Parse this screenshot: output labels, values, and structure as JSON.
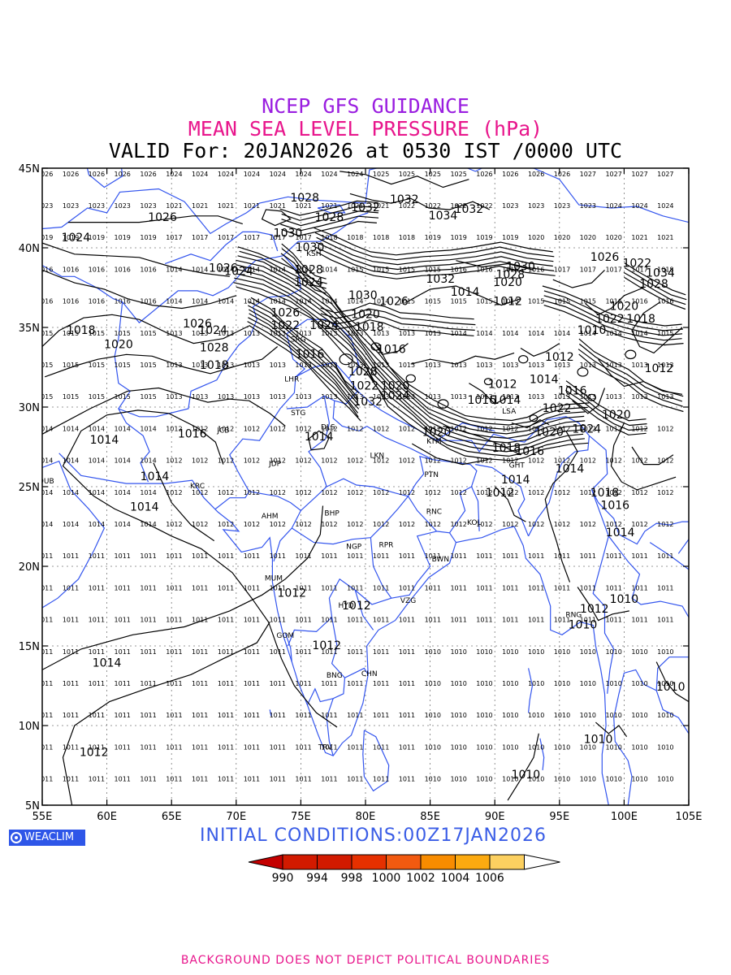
{
  "titles": {
    "line1": "NCEP GFS GUIDANCE",
    "line2": "MEAN SEA LEVEL PRESSURE (hPa)",
    "line3": "VALID For: 20JAN2026 at 0530 IST /0000 UTC"
  },
  "map": {
    "lon_range": [
      55,
      105
    ],
    "lat_range": [
      5,
      45
    ],
    "lon_ticks": [
      "55E",
      "60E",
      "65E",
      "70E",
      "75E",
      "80E",
      "85E",
      "90E",
      "95E",
      "100E",
      "105E"
    ],
    "lat_ticks": [
      "5N",
      "10N",
      "15N",
      "20N",
      "25N",
      "30N",
      "35N",
      "40N",
      "45N"
    ],
    "grid": "dotted",
    "coast_color": "#3355ee",
    "contour_color": "#000000",
    "stations": [
      {
        "id": "KSH",
        "lon": 76.0,
        "lat": 39.5
      },
      {
        "id": "SRG",
        "lon": 74.8,
        "lat": 34.1
      },
      {
        "id": "LHR",
        "lon": 74.3,
        "lat": 31.6
      },
      {
        "id": "STG",
        "lon": 74.8,
        "lat": 29.5
      },
      {
        "id": "DLS",
        "lon": 77.1,
        "lat": 28.6
      },
      {
        "id": "JCB",
        "lon": 69.0,
        "lat": 28.4
      },
      {
        "id": "JDP",
        "lon": 73.0,
        "lat": 26.3
      },
      {
        "id": "LKN",
        "lon": 80.9,
        "lat": 26.8
      },
      {
        "id": "PTN",
        "lon": 85.1,
        "lat": 25.6
      },
      {
        "id": "KTM",
        "lon": 85.3,
        "lat": 27.7
      },
      {
        "id": "GHT",
        "lon": 91.7,
        "lat": 26.2
      },
      {
        "id": "LSA",
        "lon": 91.1,
        "lat": 29.6
      },
      {
        "id": "KRC",
        "lon": 67.0,
        "lat": 24.9
      },
      {
        "id": "DUB",
        "lon": 55.3,
        "lat": 25.2
      },
      {
        "id": "AHM",
        "lon": 72.6,
        "lat": 23.0
      },
      {
        "id": "BHP",
        "lon": 77.4,
        "lat": 23.2
      },
      {
        "id": "RNC",
        "lon": 85.3,
        "lat": 23.3
      },
      {
        "id": "KOL",
        "lon": 88.4,
        "lat": 22.6
      },
      {
        "id": "NGP",
        "lon": 79.1,
        "lat": 21.1
      },
      {
        "id": "RPR",
        "lon": 81.6,
        "lat": 21.2
      },
      {
        "id": "BWN",
        "lon": 85.8,
        "lat": 20.3
      },
      {
        "id": "MUM",
        "lon": 72.9,
        "lat": 19.1
      },
      {
        "id": "HYD",
        "lon": 78.5,
        "lat": 17.4
      },
      {
        "id": "VZG",
        "lon": 83.3,
        "lat": 17.7
      },
      {
        "id": "RNG",
        "lon": 96.1,
        "lat": 16.8
      },
      {
        "id": "GOM",
        "lon": 73.8,
        "lat": 15.5
      },
      {
        "id": "BNG",
        "lon": 77.6,
        "lat": 13.0
      },
      {
        "id": "CHN",
        "lon": 80.3,
        "lat": 13.1
      },
      {
        "id": "TRV",
        "lon": 76.9,
        "lat": 8.5
      }
    ],
    "contour_labels": [
      {
        "t": "1026",
        "lon": 64.3,
        "lat": 41.9
      },
      {
        "t": "1024",
        "lon": 57.6,
        "lat": 40.6
      },
      {
        "t": "1028",
        "lon": 75.3,
        "lat": 43.1
      },
      {
        "t": "1032",
        "lon": 83.0,
        "lat": 43.0
      },
      {
        "t": "1032",
        "lon": 80.0,
        "lat": 42.5
      },
      {
        "t": "1028",
        "lon": 77.2,
        "lat": 41.9
      },
      {
        "t": "1034",
        "lon": 86.0,
        "lat": 42.0
      },
      {
        "t": "1032",
        "lon": 88.0,
        "lat": 42.4
      },
      {
        "t": "1030",
        "lon": 74.0,
        "lat": 40.9
      },
      {
        "t": "1030",
        "lon": 75.7,
        "lat": 40.0
      },
      {
        "t": "1026",
        "lon": 69.0,
        "lat": 38.7
      },
      {
        "t": "1024",
        "lon": 70.2,
        "lat": 38.5
      },
      {
        "t": "1028",
        "lon": 75.6,
        "lat": 38.6
      },
      {
        "t": "1024",
        "lon": 75.6,
        "lat": 37.8
      },
      {
        "t": "1030",
        "lon": 92.0,
        "lat": 38.8
      },
      {
        "t": "1028",
        "lon": 91.2,
        "lat": 38.3
      },
      {
        "t": "1032",
        "lon": 85.8,
        "lat": 38.0
      },
      {
        "t": "1020",
        "lon": 91.0,
        "lat": 37.8
      },
      {
        "t": "1014",
        "lon": 87.7,
        "lat": 37.2
      },
      {
        "t": "1012",
        "lon": 91.0,
        "lat": 36.6
      },
      {
        "t": "1026",
        "lon": 98.5,
        "lat": 39.4
      },
      {
        "t": "1022",
        "lon": 101.0,
        "lat": 39.0
      },
      {
        "t": "1034",
        "lon": 102.8,
        "lat": 38.4
      },
      {
        "t": "1028",
        "lon": 102.3,
        "lat": 37.7
      },
      {
        "t": "1030",
        "lon": 79.8,
        "lat": 37.0
      },
      {
        "t": "1026",
        "lon": 82.2,
        "lat": 36.6
      },
      {
        "t": "1026",
        "lon": 73.8,
        "lat": 35.9
      },
      {
        "t": "1022",
        "lon": 73.8,
        "lat": 35.1
      },
      {
        "t": "1024",
        "lon": 76.8,
        "lat": 35.1
      },
      {
        "t": "1020",
        "lon": 80.0,
        "lat": 35.8
      },
      {
        "t": "1018",
        "lon": 80.3,
        "lat": 35.0
      },
      {
        "t": "1026",
        "lon": 67.0,
        "lat": 35.2
      },
      {
        "t": "1024",
        "lon": 68.2,
        "lat": 34.8
      },
      {
        "t": "1018",
        "lon": 58.0,
        "lat": 34.8
      },
      {
        "t": "1020",
        "lon": 60.9,
        "lat": 33.9
      },
      {
        "t": "1028",
        "lon": 68.3,
        "lat": 33.7
      },
      {
        "t": "1018",
        "lon": 68.3,
        "lat": 32.6
      },
      {
        "t": "1016",
        "lon": 75.7,
        "lat": 33.3
      },
      {
        "t": "1016",
        "lon": 82.0,
        "lat": 33.6
      },
      {
        "t": "1028",
        "lon": 79.8,
        "lat": 32.2
      },
      {
        "t": "1022",
        "lon": 79.9,
        "lat": 31.3
      },
      {
        "t": "1020",
        "lon": 82.3,
        "lat": 31.3
      },
      {
        "t": "1032",
        "lon": 80.2,
        "lat": 30.3
      },
      {
        "t": "1024",
        "lon": 82.3,
        "lat": 30.7
      },
      {
        "t": "1016",
        "lon": 89.0,
        "lat": 30.4
      },
      {
        "t": "1014",
        "lon": 90.9,
        "lat": 30.4
      },
      {
        "t": "1012",
        "lon": 90.6,
        "lat": 31.4
      },
      {
        "t": "1014",
        "lon": 93.8,
        "lat": 31.7
      },
      {
        "t": "1016",
        "lon": 96.0,
        "lat": 31.0
      },
      {
        "t": "1022",
        "lon": 94.8,
        "lat": 29.9
      },
      {
        "t": "1020",
        "lon": 99.4,
        "lat": 29.5
      },
      {
        "t": "1024",
        "lon": 97.1,
        "lat": 28.6
      },
      {
        "t": "1020",
        "lon": 94.2,
        "lat": 28.4
      },
      {
        "t": "1012",
        "lon": 95.0,
        "lat": 33.1
      },
      {
        "t": "1022",
        "lon": 98.9,
        "lat": 35.5
      },
      {
        "t": "1018",
        "lon": 101.3,
        "lat": 35.5
      },
      {
        "t": "1020",
        "lon": 100.0,
        "lat": 36.3
      },
      {
        "t": "1010",
        "lon": 97.5,
        "lat": 34.8
      },
      {
        "t": "1012",
        "lon": 102.7,
        "lat": 32.4
      },
      {
        "t": "1020",
        "lon": 85.5,
        "lat": 28.4
      },
      {
        "t": "1018",
        "lon": 90.9,
        "lat": 27.4
      },
      {
        "t": "1016",
        "lon": 92.7,
        "lat": 27.2
      },
      {
        "t": "1014",
        "lon": 91.6,
        "lat": 25.4
      },
      {
        "t": "1014",
        "lon": 95.8,
        "lat": 26.1
      },
      {
        "t": "1012",
        "lon": 90.4,
        "lat": 24.6
      },
      {
        "t": "1018",
        "lon": 98.5,
        "lat": 24.6
      },
      {
        "t": "1016",
        "lon": 99.3,
        "lat": 23.8
      },
      {
        "t": "1014",
        "lon": 99.7,
        "lat": 22.1
      },
      {
        "t": "1014",
        "lon": 76.4,
        "lat": 28.1
      },
      {
        "t": "1016",
        "lon": 66.6,
        "lat": 28.3
      },
      {
        "t": "1014",
        "lon": 59.8,
        "lat": 27.9
      },
      {
        "t": "1014",
        "lon": 63.7,
        "lat": 25.6
      },
      {
        "t": "1014",
        "lon": 62.9,
        "lat": 23.7
      },
      {
        "t": "1012",
        "lon": 74.3,
        "lat": 18.3
      },
      {
        "t": "1012",
        "lon": 79.3,
        "lat": 17.5
      },
      {
        "t": "1012",
        "lon": 77.0,
        "lat": 15.0
      },
      {
        "t": "1014",
        "lon": 60.0,
        "lat": 13.9
      },
      {
        "t": "1012",
        "lon": 59.0,
        "lat": 8.3
      },
      {
        "t": "1012",
        "lon": 97.7,
        "lat": 17.3
      },
      {
        "t": "1010",
        "lon": 96.8,
        "lat": 16.3
      },
      {
        "t": "1010",
        "lon": 100.0,
        "lat": 17.9
      },
      {
        "t": "1010",
        "lon": 103.6,
        "lat": 12.4
      },
      {
        "t": "1010",
        "lon": 98.0,
        "lat": 9.1
      },
      {
        "t": "1010",
        "lon": 92.4,
        "lat": 6.9
      }
    ]
  },
  "initial_conditions": "INITIAL  CONDITIONS:00Z17JAN2026",
  "logo": "WEACLIM",
  "colorbar": {
    "labels": [
      "990",
      "994",
      "998",
      "1000",
      "1002",
      "1004",
      "1006"
    ],
    "colors": [
      "#c40000",
      "#d21a00",
      "#e63000",
      "#f25a10",
      "#f88c00",
      "#fcaa10",
      "#fcd060"
    ]
  },
  "footer": "BACKGROUND DOES NOT DEPICT POLITICAL BOUNDARIES"
}
